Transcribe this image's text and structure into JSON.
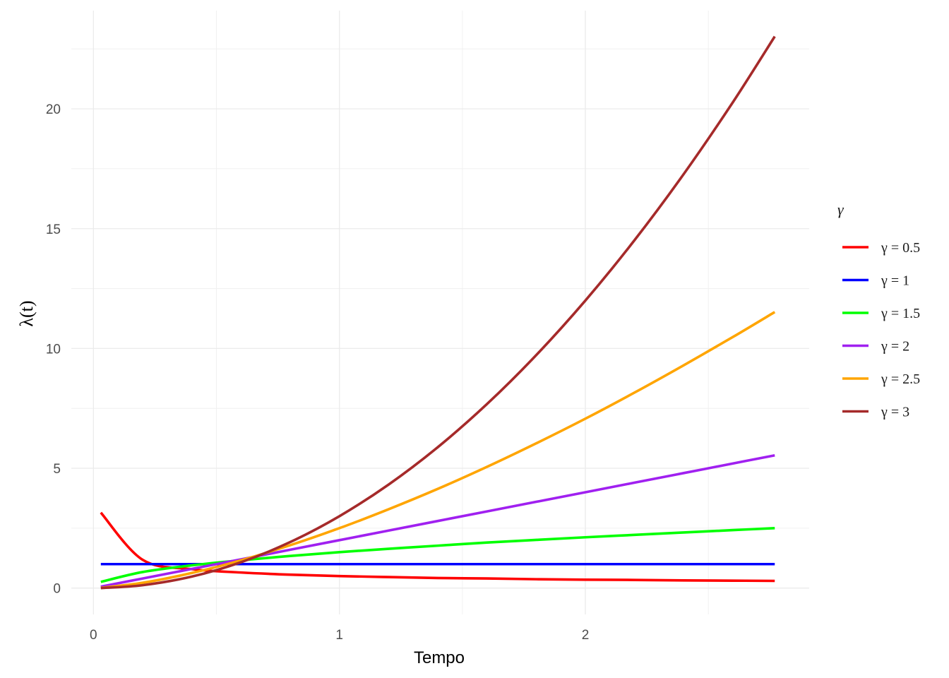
{
  "chart_data": {
    "type": "line",
    "title": "",
    "xlabel": "Tempo",
    "ylabel": "λ(t)",
    "xlim": [
      -0.09,
      2.91
    ],
    "ylim": [
      -1.1,
      24.1
    ],
    "x_ticks": [
      0,
      1,
      2
    ],
    "y_ticks": [
      0,
      5,
      10,
      15,
      20
    ],
    "grid": true,
    "legend_position": "right",
    "legend_title": "γ",
    "x": [
      0.03,
      0.2,
      0.4,
      0.6,
      0.8,
      1.0,
      1.2,
      1.4,
      1.6,
      1.8,
      2.0,
      2.2,
      2.4,
      2.6,
      2.77
    ],
    "series": [
      {
        "name": "γ = 0.5",
        "color": "#FF0000",
        "values": [
          3.15,
          1.18,
          0.79,
          0.65,
          0.56,
          0.5,
          0.46,
          0.42,
          0.4,
          0.37,
          0.35,
          0.34,
          0.32,
          0.31,
          0.3
        ]
      },
      {
        "name": "γ = 1",
        "color": "#0000FF",
        "values": [
          1,
          1,
          1,
          1,
          1,
          1,
          1,
          1,
          1,
          1,
          1,
          1,
          1,
          1,
          1
        ]
      },
      {
        "name": "γ = 1.5",
        "color": "#00FF00",
        "values": [
          0.26,
          0.67,
          0.95,
          1.16,
          1.34,
          1.5,
          1.64,
          1.77,
          1.9,
          2.01,
          2.12,
          2.22,
          2.32,
          2.42,
          2.5
        ]
      },
      {
        "name": "γ = 2",
        "color": "#A020F0",
        "values": [
          0.06,
          0.4,
          0.8,
          1.2,
          1.6,
          2.0,
          2.4,
          2.8,
          3.2,
          3.6,
          4.0,
          4.4,
          4.8,
          5.2,
          5.54
        ]
      },
      {
        "name": "γ = 2.5",
        "color": "#FFA500",
        "values": [
          0.01,
          0.22,
          0.63,
          1.16,
          1.79,
          2.5,
          3.29,
          4.14,
          5.06,
          6.04,
          7.07,
          8.16,
          9.3,
          10.48,
          11.52
        ]
      },
      {
        "name": "γ = 3",
        "color": "#A52A2A",
        "values": [
          0.0,
          0.12,
          0.48,
          1.08,
          1.92,
          3.0,
          4.32,
          5.88,
          7.68,
          9.72,
          12.0,
          14.52,
          17.28,
          20.28,
          23.02
        ]
      }
    ]
  }
}
